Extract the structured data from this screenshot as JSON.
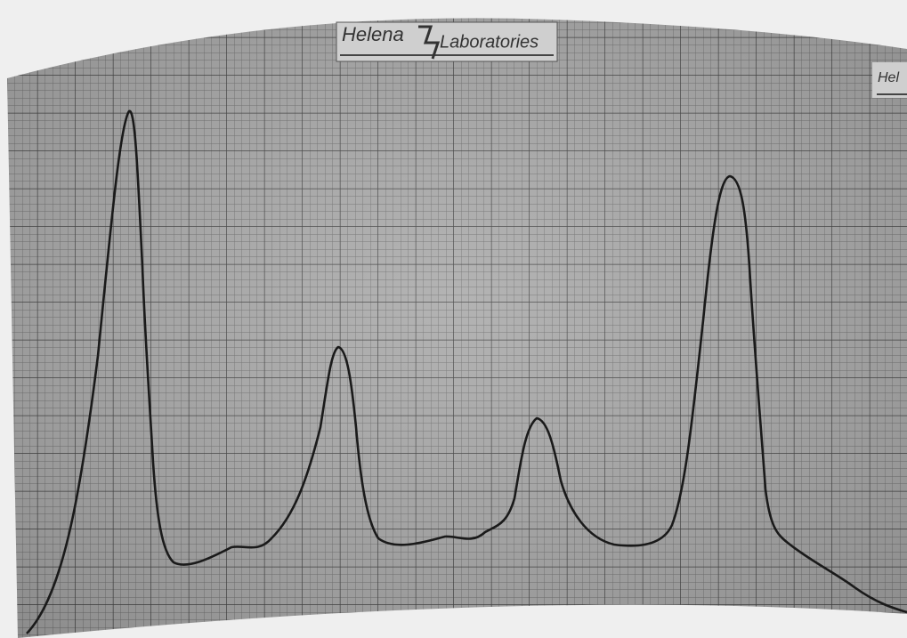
{
  "logo": {
    "left": "Helena",
    "right": "Laboratories"
  },
  "edge_logo": "Hel"
}
